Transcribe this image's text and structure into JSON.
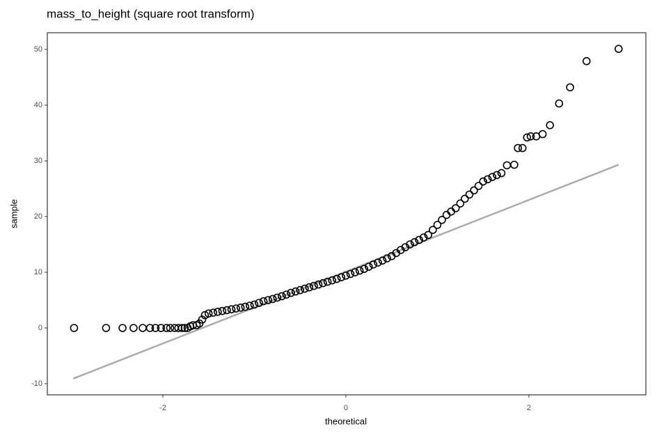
{
  "chart_data": {
    "type": "scatter",
    "title": "mass_to_height (square root transform)",
    "x_label": "theoretical",
    "y_label": "sample",
    "xlim": [
      -3.262,
      3.278
    ],
    "ylim": [
      -12,
      53
    ],
    "xticks": [
      -2,
      0,
      2
    ],
    "yticks": [
      -10,
      0,
      10,
      20,
      30,
      40,
      50
    ],
    "grid": false,
    "x": [
      -2.97,
      -2.62,
      -2.44,
      -2.32,
      -2.22,
      -2.14,
      -2.08,
      -2.02,
      -1.96,
      -1.92,
      -1.87,
      -1.83,
      -1.79,
      -1.76,
      -1.73,
      -1.7,
      -1.67,
      -1.63,
      -1.6,
      -1.57,
      -1.54,
      -1.5,
      -1.45,
      -1.4,
      -1.35,
      -1.3,
      -1.25,
      -1.2,
      -1.15,
      -1.1,
      -1.05,
      -1.0,
      -0.95,
      -0.9,
      -0.85,
      -0.8,
      -0.75,
      -0.7,
      -0.65,
      -0.6,
      -0.55,
      -0.5,
      -0.45,
      -0.4,
      -0.35,
      -0.3,
      -0.25,
      -0.2,
      -0.15,
      -0.1,
      -0.05,
      0,
      0.05,
      0.1,
      0.15,
      0.2,
      0.25,
      0.3,
      0.35,
      0.4,
      0.45,
      0.5,
      0.55,
      0.6,
      0.65,
      0.7,
      0.75,
      0.8,
      0.85,
      0.9,
      0.95,
      1.0,
      1.05,
      1.1,
      1.15,
      1.2,
      1.25,
      1.3,
      1.35,
      1.4,
      1.45,
      1.5,
      1.55,
      1.6,
      1.65,
      1.7,
      1.76,
      1.84,
      1.88,
      1.93,
      1.98,
      2.02,
      2.08,
      2.15,
      2.23,
      2.33,
      2.45,
      2.63,
      2.98
    ],
    "series": [
      {
        "color": "#000000",
        "values": [
          0,
          0,
          0,
          0,
          0,
          0,
          0,
          0,
          0,
          0,
          0,
          0,
          0,
          0,
          0,
          0.3,
          0.5,
          0.5,
          0.8,
          1.5,
          2.3,
          2.6,
          2.75,
          2.9,
          3.05,
          3.2,
          3.35,
          3.5,
          3.65,
          3.8,
          4.0,
          4.2,
          4.5,
          4.8,
          5.0,
          5.2,
          5.45,
          5.7,
          6.0,
          6.3,
          6.55,
          6.8,
          7.05,
          7.3,
          7.55,
          7.8,
          8.05,
          8.3,
          8.55,
          8.8,
          9.1,
          9.4,
          9.7,
          10.0,
          10.3,
          10.6,
          11.0,
          11.4,
          11.75,
          12.1,
          12.5,
          12.9,
          13.45,
          14.0,
          14.5,
          15.0,
          15.4,
          15.8,
          16.25,
          16.7,
          17.6,
          18.5,
          19.4,
          20.3,
          20.9,
          21.5,
          22.35,
          23.2,
          23.95,
          24.7,
          25.5,
          26.3,
          26.7,
          27.1,
          27.45,
          27.8,
          29.2,
          29.3,
          32.3,
          32.3,
          34.2,
          34.4,
          34.4,
          34.8,
          36.4,
          40.3,
          43.2,
          47.9,
          50.1
        ]
      }
    ],
    "reference_line": {
      "color": "#aaaaaa",
      "x": [
        -2.98,
        2.98
      ],
      "y": [
        -9.1,
        29.3
      ]
    }
  }
}
